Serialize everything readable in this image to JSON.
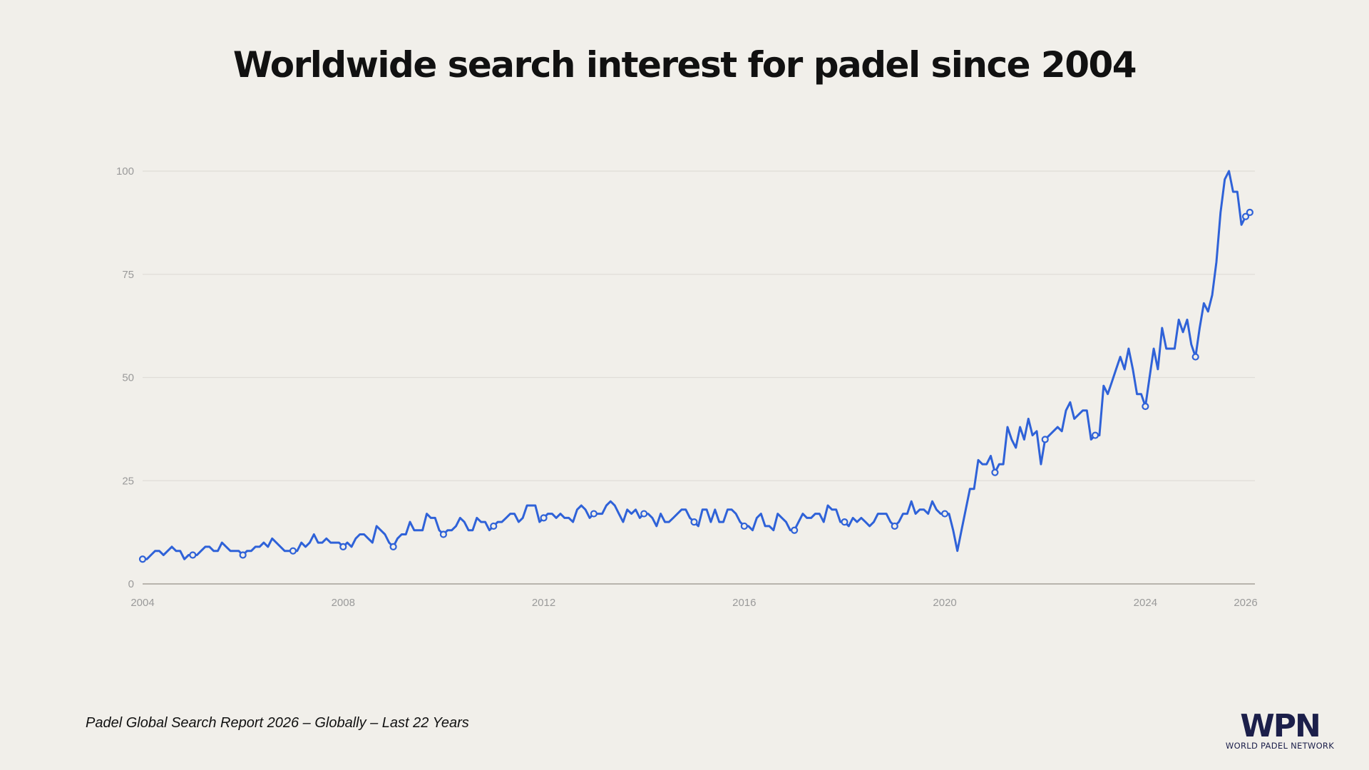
{
  "chart_data": {
    "type": "line",
    "title": "Worldwide search interest for padel since 2004",
    "xlabel": "",
    "ylabel": "",
    "ylim": [
      0,
      100
    ],
    "xlim": [
      "2004-01",
      "2026-03"
    ],
    "yticks": [
      "0",
      "25",
      "50",
      "75",
      "100"
    ],
    "xticks": [
      "2004",
      "2008",
      "2012",
      "2016",
      "2020",
      "2024",
      "2026"
    ],
    "grid": true,
    "line_color": "#2f62d8",
    "markers": "hollow circle at each January",
    "monthly_values_by_year": {
      "2004": [
        6,
        6,
        7,
        8,
        8,
        7,
        8,
        9,
        8,
        8,
        6,
        7
      ],
      "2005": [
        7,
        7,
        8,
        9,
        9,
        8,
        8,
        10,
        9,
        8,
        8,
        8
      ],
      "2006": [
        7,
        8,
        8,
        9,
        9,
        10,
        9,
        11,
        10,
        9,
        8,
        8
      ],
      "2007": [
        8,
        8,
        10,
        9,
        10,
        12,
        10,
        10,
        11,
        10,
        10,
        10
      ],
      "2008": [
        9,
        10,
        9,
        11,
        12,
        12,
        11,
        10,
        14,
        13,
        12,
        10
      ],
      "2009": [
        9,
        11,
        12,
        12,
        15,
        13,
        13,
        13,
        17,
        16,
        16,
        13
      ],
      "2010": [
        12,
        13,
        13,
        14,
        16,
        15,
        13,
        13,
        16,
        15,
        15,
        13
      ],
      "2011": [
        14,
        15,
        15,
        16,
        17,
        17,
        15,
        16,
        19,
        19,
        19,
        15
      ],
      "2012": [
        16,
        17,
        17,
        16,
        17,
        16,
        16,
        15,
        18,
        19,
        18,
        16
      ],
      "2013": [
        17,
        17,
        17,
        19,
        20,
        19,
        17,
        15,
        18,
        17,
        18,
        16
      ],
      "2014": [
        17,
        17,
        16,
        14,
        17,
        15,
        15,
        16,
        17,
        18,
        18,
        16
      ],
      "2015": [
        15,
        14,
        18,
        18,
        15,
        18,
        15,
        15,
        18,
        18,
        17,
        15
      ],
      "2016": [
        14,
        14,
        13,
        16,
        17,
        14,
        14,
        13,
        17,
        16,
        15,
        13
      ],
      "2017": [
        13,
        15,
        17,
        16,
        16,
        17,
        17,
        15,
        19,
        18,
        18,
        15
      ],
      "2018": [
        15,
        14,
        16,
        15,
        16,
        15,
        14,
        15,
        17,
        17,
        17,
        15
      ],
      "2019": [
        14,
        15,
        17,
        17,
        20,
        17,
        18,
        18,
        17,
        20,
        18,
        17
      ],
      "2020": [
        17,
        17,
        13,
        8,
        13,
        18,
        23,
        23,
        30,
        29,
        29,
        31
      ],
      "2021": [
        27,
        29,
        29,
        38,
        35,
        33,
        38,
        35,
        40,
        36,
        37,
        29
      ],
      "2022": [
        35,
        36,
        37,
        38,
        37,
        42,
        44,
        40,
        41,
        42,
        42,
        35
      ],
      "2023": [
        36,
        36,
        48,
        46,
        49,
        52,
        55,
        52,
        57,
        52,
        46,
        46
      ],
      "2024": [
        43,
        50,
        57,
        52,
        62,
        57,
        57,
        57,
        64,
        61,
        64,
        58
      ],
      "2025": [
        55,
        62,
        68,
        66,
        70,
        78,
        90,
        98,
        100,
        95,
        95,
        87
      ],
      "2026": [
        89,
        90
      ]
    }
  },
  "footer": {
    "source": "Padel Global Search Report 2026 – Globally – Last 22 Years"
  },
  "logo": {
    "mark": "WPN",
    "name": "WORLD PADEL NETWORK",
    "color": "#1c1f4a"
  }
}
